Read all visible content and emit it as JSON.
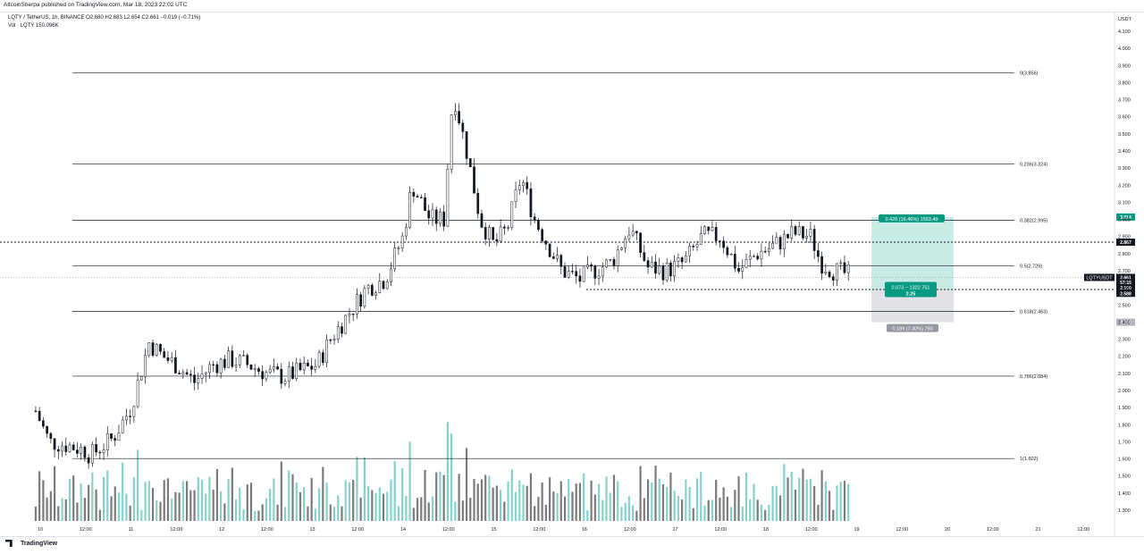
{
  "header": {
    "publisher": "AltcoinSherpa published on TradingView.com, Mar 18, 2023 22:02 UTC",
    "legend_main": "LQTY / TetherUS, 1h, BINANCE  O2.680  H2.683  L2.654  C2.661  −0.019 (−0.71%)",
    "legend_volume": "Vol · LQTY  150.096K",
    "axis_currency": "USDT"
  },
  "footer": {
    "logo_text": "TradingView"
  },
  "chart_data": {
    "type": "candlestick",
    "symbol": "LQTYUSDT",
    "ylim": [
      1.2,
      4.2
    ],
    "y_ticks": [
      "1.300",
      "1.400",
      "1.500",
      "1.600",
      "1.700",
      "1.800",
      "1.900",
      "2.000",
      "2.100",
      "2.200",
      "2.300",
      "2.400",
      "2.500",
      "2.600",
      "2.700",
      "2.800",
      "2.900",
      "3.000",
      "3.100",
      "3.200",
      "3.300",
      "3.400",
      "3.500",
      "3.600",
      "3.700",
      "3.800",
      "3.900",
      "4.000",
      "4.100"
    ],
    "x_ticks": [
      "10",
      "12:00",
      "11",
      "12:00",
      "12",
      "12:00",
      "13",
      "12:00",
      "14",
      "12:00",
      "15",
      "12:00",
      "16",
      "12:00",
      "17",
      "12:00",
      "18",
      "12:00",
      "19",
      "12:00",
      "20",
      "12:00",
      "21",
      "12:00"
    ],
    "x_tick_days": [
      0,
      0.5,
      1,
      1.5,
      2,
      2.5,
      3,
      3.5,
      4,
      4.5,
      5,
      5.5,
      6,
      6.5,
      7,
      7.5,
      8,
      8.5,
      9,
      9.5,
      10,
      10.5,
      11,
      11.5
    ],
    "fib_levels": [
      {
        "label": "0(3.856)",
        "value": 3.856
      },
      {
        "label": "0.236(3.324)",
        "value": 3.324
      },
      {
        "label": "0.382(2.995)",
        "value": 2.995
      },
      {
        "label": "0.5(2.729)",
        "value": 2.729
      },
      {
        "label": "0.618(2.463)",
        "value": 2.463
      },
      {
        "label": "0.786(2.084)",
        "value": 2.084
      },
      {
        "label": "1(1.602)",
        "value": 1.602
      }
    ],
    "horizontal_lines": [
      2.867,
      2.59
    ],
    "position_tool": {
      "entry": 2.588,
      "target": 3.014,
      "stop": 2.399,
      "target_label": "0.426 (16.46%) 1563.49",
      "entry_label_line1": "0.073 − 1322.751",
      "entry_label_line2": "2.25",
      "stop_label": "0.189 (7.30%) 750"
    },
    "price_badges": [
      {
        "value": 3.014,
        "label": "3.014",
        "color": "#089981"
      },
      {
        "value": 2.867,
        "label": "2.867",
        "color": "#131722"
      },
      {
        "value": 2.661,
        "label": "2.661",
        "color": "#131722"
      },
      {
        "value": 2.631,
        "label": "57:15",
        "color": "#131722"
      },
      {
        "value": 2.6,
        "label": "2.590",
        "color": "#131722"
      },
      {
        "value": 2.568,
        "label": "2.588",
        "color": "#131722"
      },
      {
        "value": 2.399,
        "label": "2.399",
        "color": "#b2b5be"
      }
    ],
    "symbol_tag": "LQTYUSDT",
    "symbol_tag_value": 2.661,
    "colors": {
      "up_volume": "#86d1cb",
      "down_volume": "#7b7b7b",
      "candle": "#131722",
      "fib": "#131722",
      "target_zone": "#c9ebe6",
      "stop_zone": "#e1e2e6",
      "target_badge": "#089981",
      "stop_badge": "#9598a1"
    },
    "price_path": [
      [
        -0.05,
        1.88
      ],
      [
        0.1,
        1.7
      ],
      [
        0.3,
        1.68
      ],
      [
        0.5,
        1.65
      ],
      [
        0.55,
        1.62
      ],
      [
        0.8,
        1.72
      ],
      [
        1.0,
        1.9
      ],
      [
        1.2,
        2.28
      ],
      [
        1.35,
        2.2
      ],
      [
        1.5,
        2.15
      ],
      [
        1.7,
        2.05
      ],
      [
        1.9,
        2.15
      ],
      [
        2.1,
        2.18
      ],
      [
        2.3,
        2.15
      ],
      [
        2.5,
        2.1
      ],
      [
        2.7,
        2.08
      ],
      [
        2.9,
        2.12
      ],
      [
        3.05,
        2.15
      ],
      [
        3.2,
        2.3
      ],
      [
        3.4,
        2.45
      ],
      [
        3.6,
        2.6
      ],
      [
        3.8,
        2.65
      ],
      [
        4.0,
        2.9
      ],
      [
        4.1,
        3.2
      ],
      [
        4.3,
        3.0
      ],
      [
        4.45,
        3.0
      ],
      [
        4.55,
        3.75
      ],
      [
        4.7,
        3.4
      ],
      [
        4.85,
        3.0
      ],
      [
        5.0,
        2.85
      ],
      [
        5.15,
        2.95
      ],
      [
        5.3,
        3.25
      ],
      [
        5.45,
        3.0
      ],
      [
        5.6,
        2.85
      ],
      [
        5.75,
        2.7
      ],
      [
        5.95,
        2.65
      ],
      [
        6.1,
        2.7
      ],
      [
        6.3,
        2.75
      ],
      [
        6.5,
        2.95
      ],
      [
        6.7,
        2.72
      ],
      [
        6.9,
        2.7
      ],
      [
        7.1,
        2.75
      ],
      [
        7.3,
        2.9
      ],
      [
        7.5,
        2.9
      ],
      [
        7.7,
        2.7
      ],
      [
        7.9,
        2.8
      ],
      [
        8.1,
        2.85
      ],
      [
        8.3,
        2.92
      ],
      [
        8.5,
        2.9
      ],
      [
        8.6,
        2.75
      ],
      [
        8.75,
        2.7
      ],
      [
        8.9,
        2.68
      ],
      [
        8.95,
        2.661
      ]
    ]
  }
}
